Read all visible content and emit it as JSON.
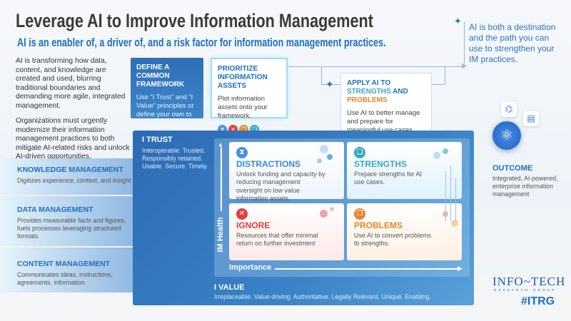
{
  "title": "Leverage AI to Improve Information Management",
  "subtitle": "AI is an enabler of, a driver of, and a risk factor for information management practices.",
  "note": "AI is both a destination and the path you can use to strengthen your IM practices.",
  "intro": [
    "AI is transforming how data, content, and knowledge are created and used, blurring traditional boundaries and demanding more agile, integrated management.",
    "Organizations must urgently modernize their information management practices to both mitigate AI-related risks and unlock AI-driven opportunities."
  ],
  "steps": [
    {
      "title": "DEFINE A COMMON FRAMEWORK",
      "text": "Use “I Trust” and “I Value” principles or define your own to describe IM health and importance."
    },
    {
      "title": "PRIORITIZE INFORMATION ASSETS",
      "text": "Plot information assets onto your framework."
    },
    {
      "title_a": "APPLY AI TO ",
      "title_b": "STRENGTHS",
      "title_c": " AND ",
      "title_d": "PROBLEMS",
      "text": "Use AI to better manage and prepare for meaningful use cases."
    }
  ],
  "bands": [
    {
      "title": "KNOWLEDGE MANAGEMENT",
      "text": "Digitizes experience, context, and insight"
    },
    {
      "title": "DATA MANAGEMENT",
      "text": "Provides measurable facts and figures, fuels processes leveraging structured formats"
    },
    {
      "title": "CONTENT MANAGEMENT",
      "text": "Communicates ideas, instructions, agreements, information"
    }
  ],
  "trust": {
    "title": "I TRUST",
    "text": "Interoperable. Trusted. Responsibly retained. Usable. Secure. Timely."
  },
  "value": {
    "title": "I VALUE",
    "text": "Irreplaceable. Value-driving. Authoritative. Legally Relevant. Unique. Enabling."
  },
  "axes": {
    "y": "IM Health",
    "x": "Importance"
  },
  "quadrants": [
    {
      "title": "DISTRACTIONS",
      "text": "Unlock funding and capacity by reducing management oversight on low value information assets.",
      "color": "#3b8ae0"
    },
    {
      "title": "STRENGTHS",
      "text": "Prepare strengths for AI use cases.",
      "color": "#3aa8c4"
    },
    {
      "title": "IGNORE",
      "text": "Resources that offer minimal return on further investment",
      "color": "#e2403f"
    },
    {
      "title": "PROBLEMS",
      "text": "Use AI to convert problems to strengths.",
      "color": "#e9862a"
    }
  ],
  "outcome": {
    "title": "OUTCOME",
    "text": "Integrated, AI-powered, enterprise information management"
  },
  "logo": {
    "name": "INFO~TECH",
    "sub": "RESEARCH GROUP",
    "tag": "#ITRG"
  }
}
